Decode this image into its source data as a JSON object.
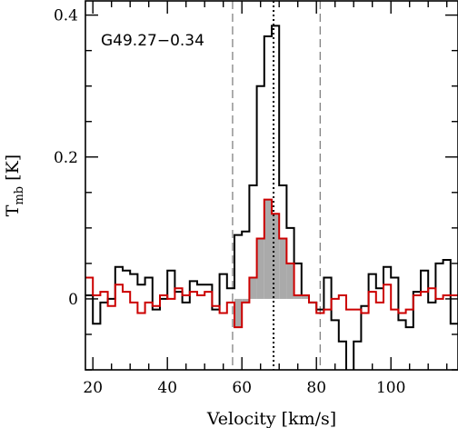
{
  "chart_data": {
    "type": "line",
    "title": "",
    "annotation": "G49.27−0.34",
    "xlabel": "Velocity [km/s]",
    "ylabel_main": "T",
    "ylabel_sub": "mb",
    "ylabel_unit": " [K]",
    "xlim": [
      18,
      118
    ],
    "ylim": [
      -0.1,
      0.42
    ],
    "x_major_ticks": [
      20,
      40,
      60,
      80,
      100
    ],
    "x_tick_labels": [
      "20",
      "40",
      "60",
      "80",
      "100"
    ],
    "y_major_ticks": [
      0,
      0.2,
      0.4
    ],
    "y_tick_labels": [
      "0",
      "0.2",
      "0.4"
    ],
    "x_minor_step": 5,
    "y_minor_step": 0.05,
    "vlines": [
      {
        "x": 57.5,
        "style": "dashed",
        "color": "#777777"
      },
      {
        "x": 68.5,
        "style": "dotted",
        "color": "#000000"
      },
      {
        "x": 81.0,
        "style": "dashed",
        "color": "#777777"
      }
    ],
    "fill_color": "#aaaaaa",
    "series": [
      {
        "color": "#000000",
        "style": "step",
        "x": [
          18,
          20,
          22,
          24,
          26,
          28,
          30,
          32,
          34,
          36,
          38,
          40,
          42,
          44,
          46,
          48,
          50,
          52,
          54,
          56,
          58,
          60,
          62,
          64,
          66,
          68,
          70,
          72,
          74,
          76,
          78,
          80,
          82,
          84,
          86,
          88,
          90,
          92,
          94,
          96,
          98,
          100,
          102,
          104,
          106,
          108,
          110,
          112,
          114,
          116
        ],
        "y": [
          0.005,
          -0.035,
          -0.005,
          0.0,
          0.045,
          0.04,
          0.035,
          0.02,
          0.03,
          -0.015,
          0.0,
          0.04,
          0.01,
          -0.005,
          0.025,
          0.02,
          0.02,
          -0.015,
          0.035,
          0.015,
          0.09,
          0.095,
          0.16,
          0.3,
          0.37,
          0.385,
          0.16,
          0.1,
          0.05,
          0.005,
          -0.005,
          -0.015,
          0.03,
          -0.03,
          -0.06,
          -0.12,
          -0.06,
          -0.01,
          0.035,
          0.015,
          0.045,
          0.03,
          -0.03,
          -0.04,
          0.01,
          0.04,
          -0.005,
          0.05,
          0.055,
          -0.035
        ]
      },
      {
        "color": "#cc0000",
        "style": "step",
        "filled_range": [
          58,
          78
        ],
        "x": [
          18,
          20,
          22,
          24,
          26,
          28,
          30,
          32,
          34,
          36,
          38,
          40,
          42,
          44,
          46,
          48,
          50,
          52,
          54,
          56,
          58,
          60,
          62,
          64,
          66,
          68,
          70,
          72,
          74,
          76,
          78,
          80,
          82,
          84,
          86,
          88,
          90,
          92,
          94,
          96,
          98,
          100,
          102,
          104,
          106,
          108,
          110,
          112,
          114,
          116
        ],
        "y": [
          0.03,
          0.005,
          0.01,
          -0.01,
          0.02,
          0.01,
          -0.005,
          -0.02,
          -0.005,
          -0.01,
          0.005,
          0.0,
          0.015,
          0.005,
          0.01,
          0.005,
          0.01,
          -0.01,
          -0.02,
          -0.005,
          -0.04,
          -0.005,
          0.03,
          0.085,
          0.14,
          0.12,
          0.085,
          0.05,
          0.005,
          0.005,
          -0.005,
          -0.02,
          -0.015,
          0.0,
          0.005,
          -0.015,
          -0.015,
          -0.02,
          0.01,
          -0.005,
          0.02,
          -0.015,
          -0.02,
          -0.015,
          0.005,
          0.01,
          0.015,
          0.0,
          0.005,
          0.005
        ]
      }
    ]
  }
}
